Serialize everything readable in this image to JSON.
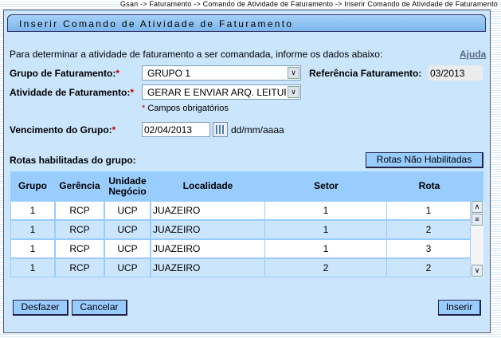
{
  "breadcrumb": "Gsan -> Faturamento -> Comando de Atividade de Faturamento -> Inserir Comando de Atividade de Faturamento",
  "title": "Inserir Comando de Atividade de Faturamento",
  "instruction": "Para determinar a atividade de faturamento a ser comandada, informe os dados abaixo:",
  "help_link": "Ajuda",
  "form": {
    "grupo_label": "Grupo de Faturamento:",
    "grupo_value": "GRUPO 1",
    "referencia_label": "Referência Faturamento:",
    "referencia_value": "03/2013",
    "atividade_label": "Atividade de Faturamento:",
    "atividade_value": "GERAR E ENVIAR ARQ. LEITURA",
    "required_note": "Campos obrigatórios",
    "required_mark": "*",
    "vencimento_label": "Vencimento do Grupo:",
    "vencimento_value": "02/04/2013",
    "date_format": "dd/mm/aaaa"
  },
  "rotas": {
    "label": "Rotas habilitadas do grupo:",
    "button": "Rotas Não Habilitadas",
    "columns": [
      "Grupo",
      "Gerência",
      "Unidade Negócio",
      "Localidade",
      "Setor",
      "Rota"
    ],
    "rows": [
      [
        "1",
        "RCP",
        "UCP",
        "JUAZEIRO",
        "1",
        "1"
      ],
      [
        "1",
        "RCP",
        "UCP",
        "JUAZEIRO",
        "1",
        "2"
      ],
      [
        "1",
        "RCP",
        "UCP",
        "JUAZEIRO",
        "1",
        "3"
      ],
      [
        "1",
        "RCP",
        "UCP",
        "JUAZEIRO",
        "2",
        "2"
      ]
    ]
  },
  "buttons": {
    "desfazer": "Desfazer",
    "cancelar": "Cancelar",
    "inserir": "Inserir"
  }
}
